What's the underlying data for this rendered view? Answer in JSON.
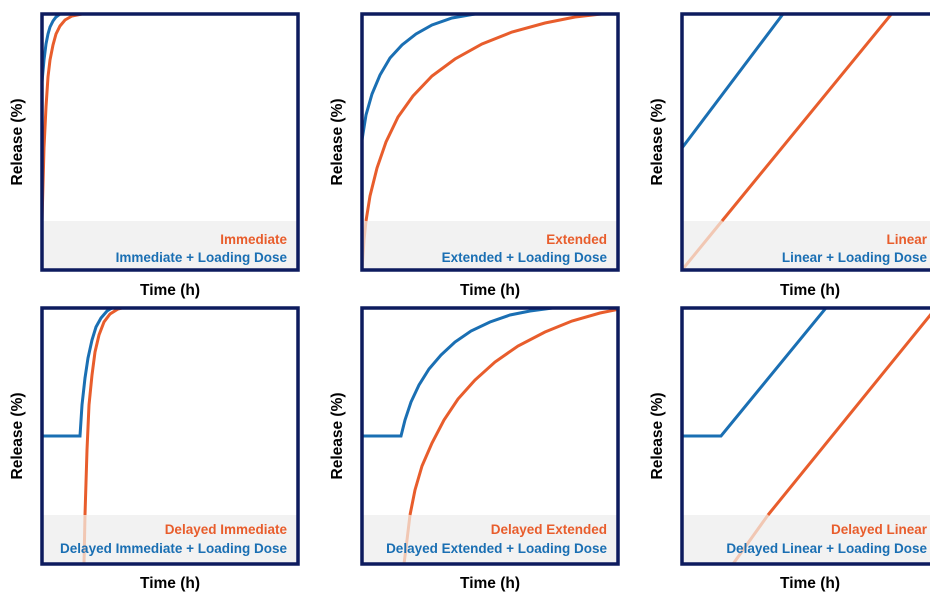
{
  "colors": {
    "frame": "#0d1b5e",
    "series_primary": "#e85d2c",
    "series_primary_faded": "#f1c7b3",
    "series_loading": "#1a6fb3",
    "band": "#f2f2f2"
  },
  "icons": {},
  "axes": {
    "xlabel": "Time (h)",
    "ylabel": "Release (%)"
  },
  "panels": [
    {
      "id": "immediate",
      "legend_primary": "Immediate",
      "legend_loading": "Immediate + Loading Dose"
    },
    {
      "id": "extended",
      "legend_primary": "Extended",
      "legend_loading": "Extended + Loading Dose"
    },
    {
      "id": "linear",
      "legend_primary": "Linear",
      "legend_loading": "Linear + Loading Dose"
    },
    {
      "id": "delayed-immediate",
      "legend_primary": "Delayed Immediate",
      "legend_loading": "Delayed Immediate + Loading Dose"
    },
    {
      "id": "delayed-extended",
      "legend_primary": "Delayed Extended",
      "legend_loading": "Delayed Extended + Loading Dose"
    },
    {
      "id": "delayed-linear",
      "legend_primary": "Delayed Linear",
      "legend_loading": "Delayed Linear + Loading Dose"
    }
  ]
}
